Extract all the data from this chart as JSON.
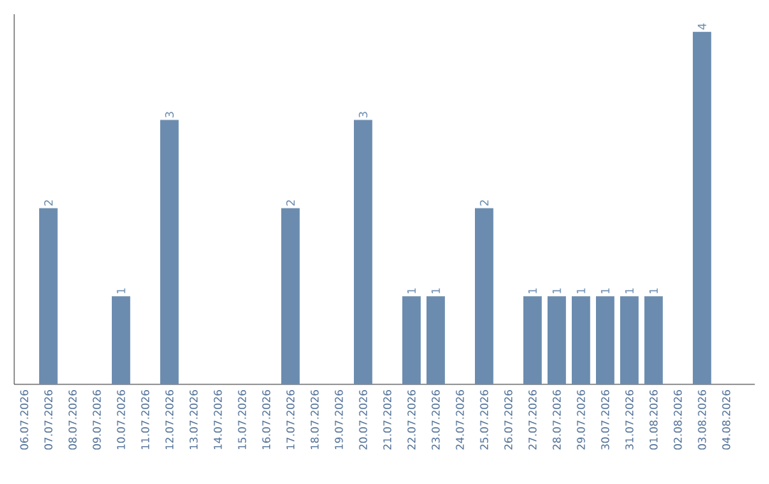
{
  "chart_data": {
    "type": "bar",
    "categories": [
      "06.07.2026",
      "07.07.2026",
      "08.07.2026",
      "09.07.2026",
      "10.07.2026",
      "11.07.2026",
      "12.07.2026",
      "13.07.2026",
      "14.07.2026",
      "15.07.2026",
      "16.07.2026",
      "17.07.2026",
      "18.07.2026",
      "19.07.2026",
      "20.07.2026",
      "21.07.2026",
      "22.07.2026",
      "23.07.2026",
      "24.07.2026",
      "25.07.2026",
      "26.07.2026",
      "27.07.2026",
      "28.07.2026",
      "29.07.2026",
      "30.07.2026",
      "31.07.2026",
      "01.08.2026",
      "02.08.2026",
      "03.08.2026",
      "04.08.2026"
    ],
    "values": [
      0,
      2,
      0,
      0,
      1,
      0,
      3,
      0,
      0,
      0,
      0,
      2,
      0,
      0,
      3,
      0,
      1,
      1,
      0,
      2,
      0,
      1,
      1,
      1,
      1,
      1,
      1,
      0,
      4,
      0
    ],
    "value_labels": [
      null,
      "2",
      null,
      null,
      "1",
      null,
      "3",
      null,
      null,
      null,
      null,
      "2",
      null,
      null,
      "3",
      null,
      "1",
      "1",
      null,
      "2",
      null,
      "1",
      "1",
      "1",
      "1",
      "1",
      "1",
      null,
      "4",
      null
    ],
    "color": "#6b8caf",
    "ylim": [
      0,
      4.2
    ],
    "tick_labels": "x"
  }
}
